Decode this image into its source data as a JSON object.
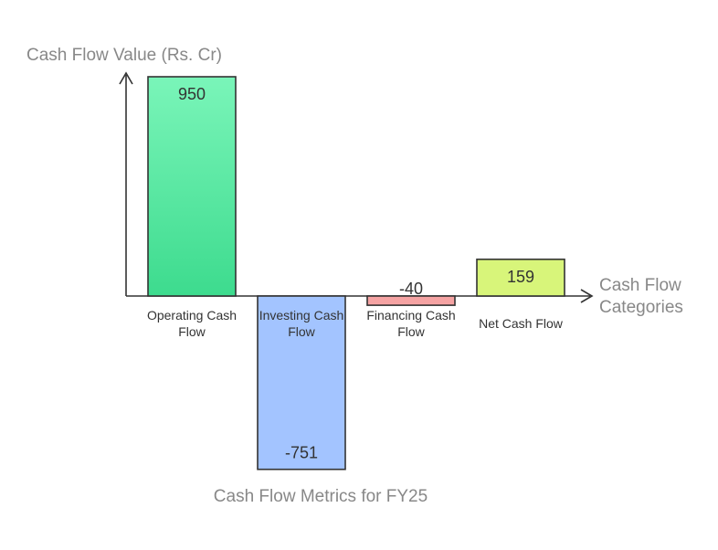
{
  "chart_data": {
    "type": "bar",
    "title": "Cash Flow Metrics for FY25",
    "ylabel": "Cash Flow Value (Rs. Cr)",
    "xlabel_lines": [
      "Cash Flow",
      "Categories"
    ],
    "ylim": [
      -800,
      1000
    ],
    "grid": false,
    "categories": [
      {
        "lines": [
          "Operating Cash",
          "Flow"
        ]
      },
      {
        "lines": [
          "Investing Cash",
          "Flow"
        ]
      },
      {
        "lines": [
          "Financing Cash",
          "Flow"
        ]
      },
      {
        "lines": [
          "Net Cash Flow"
        ]
      }
    ],
    "values": [
      950,
      -751,
      -40,
      159
    ],
    "value_labels": [
      "950",
      "-751",
      "-40",
      "159"
    ],
    "colors": [
      {
        "top": "#7af5b9",
        "bottom": "#3ddb8e"
      },
      {
        "top": "#a3c4ff",
        "bottom": "#a3c4ff"
      },
      {
        "top": "#f5a3a3",
        "bottom": "#f5a3a3"
      },
      {
        "top": "#d8f57a",
        "bottom": "#d8f57a"
      }
    ],
    "stroke_color": "#333333"
  }
}
